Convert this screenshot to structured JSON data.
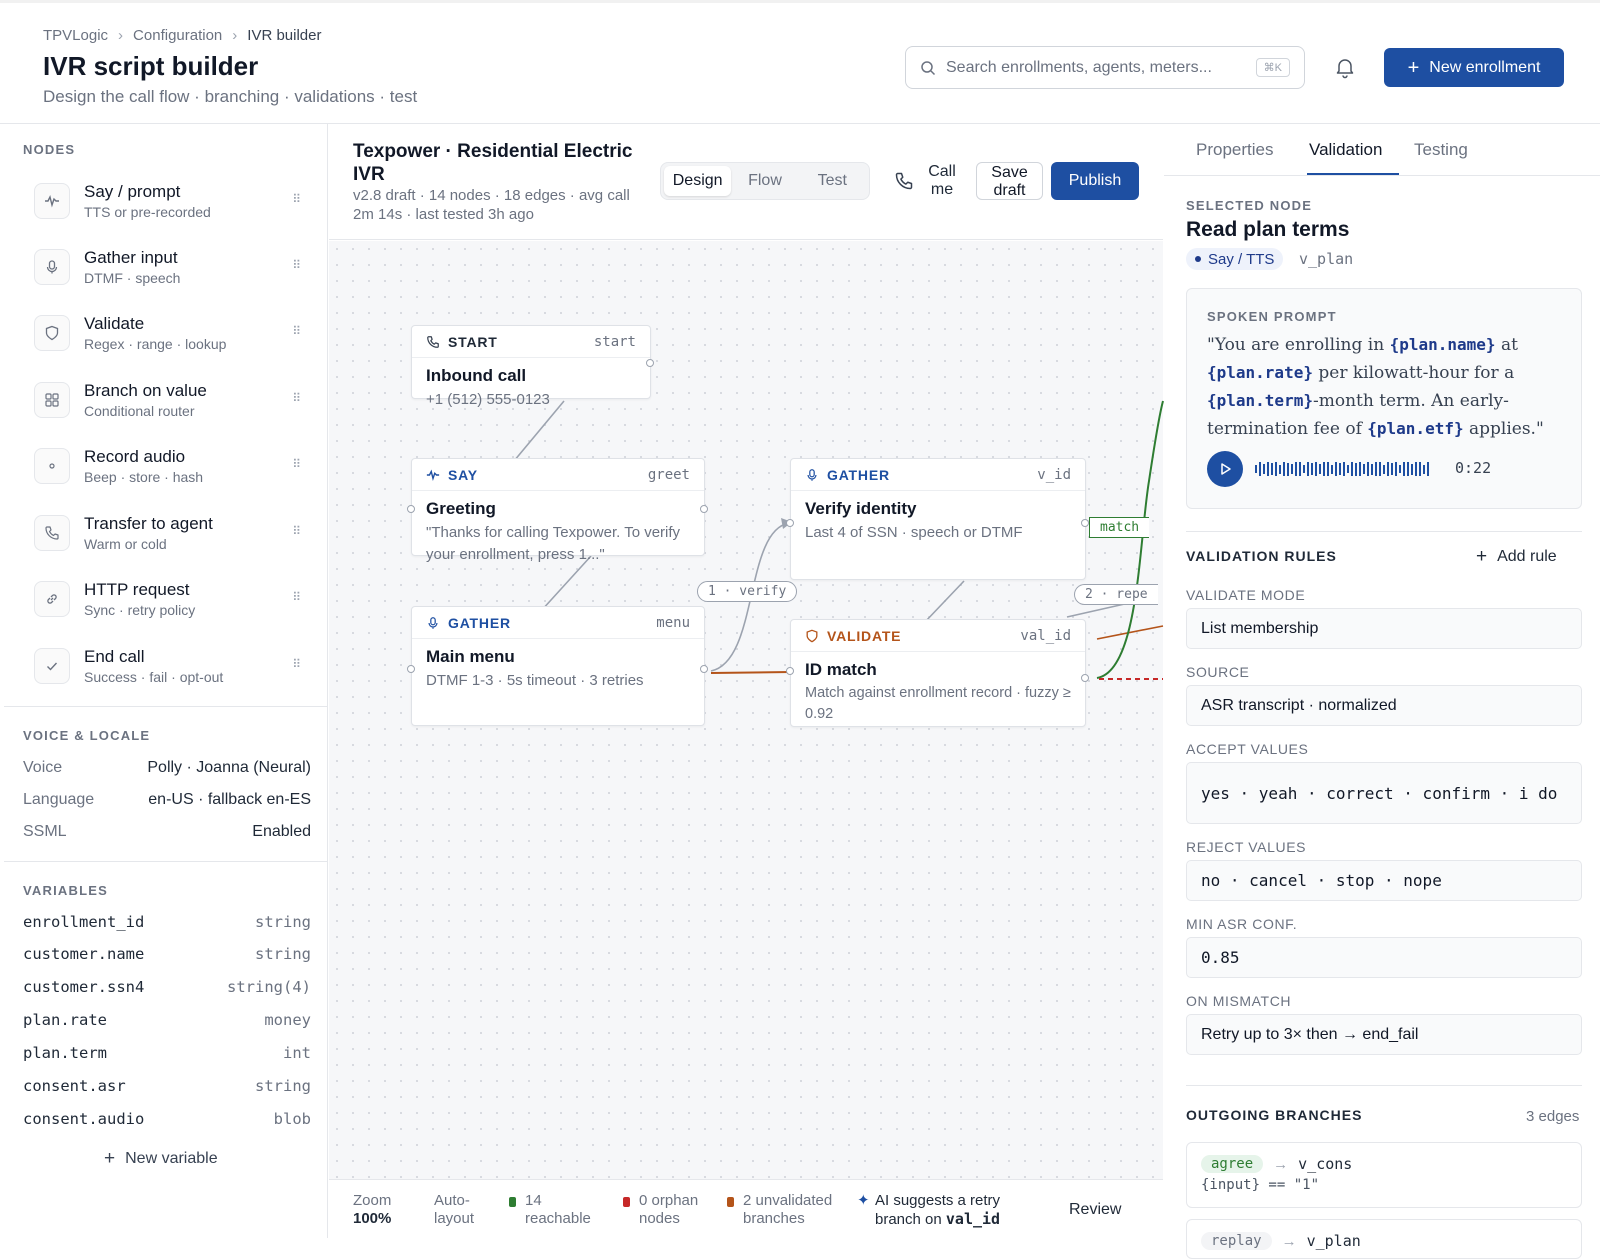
{
  "header": {
    "breadcrumbs": [
      "TPVLogic",
      "Configuration",
      "IVR builder"
    ],
    "title": "IVR script builder",
    "subtitle": "Design the call flow · branching · validations · test",
    "search_placeholder": "Search enrollments, agents, meters...",
    "search_shortcut": "⌘K",
    "new_button": "New enrollment"
  },
  "sidebar": {
    "nodes_label": "NODES",
    "nodes": [
      {
        "name": "Say / prompt",
        "desc": "TTS or pre-recorded",
        "icon": "waveform-icon"
      },
      {
        "name": "Gather input",
        "desc": "DTMF · speech",
        "icon": "microphone-icon"
      },
      {
        "name": "Validate",
        "desc": "Regex · range · lookup",
        "icon": "shield-icon"
      },
      {
        "name": "Branch on value",
        "desc": "Conditional router",
        "icon": "grid-icon"
      },
      {
        "name": "Record audio",
        "desc": "Beep · store · hash",
        "icon": "record-icon"
      },
      {
        "name": "Transfer to agent",
        "desc": "Warm or cold",
        "icon": "phone-icon"
      },
      {
        "name": "HTTP request",
        "desc": "Sync · retry policy",
        "icon": "link-icon"
      },
      {
        "name": "End call",
        "desc": "Success · fail · opt-out",
        "icon": "check-icon"
      }
    ],
    "voice_label": "VOICE & LOCALE",
    "voice": [
      {
        "k": "Voice",
        "v": "Polly · Joanna (Neural)"
      },
      {
        "k": "Language",
        "v": "en-US · fallback en-ES"
      },
      {
        "k": "SSML",
        "v": "Enabled"
      }
    ],
    "variables_label": "VARIABLES",
    "variables": [
      {
        "k": "enrollment_id",
        "v": "string"
      },
      {
        "k": "customer.name",
        "v": "string"
      },
      {
        "k": "customer.ssn4",
        "v": "string(4)"
      },
      {
        "k": "plan.rate",
        "v": "money"
      },
      {
        "k": "plan.term",
        "v": "int"
      },
      {
        "k": "consent.asr",
        "v": "string"
      },
      {
        "k": "consent.audio",
        "v": "blob"
      }
    ],
    "new_variable": "New variable"
  },
  "flow": {
    "title": "Texpower · Residential Electric IVR",
    "meta": "v2.8 draft · 14 nodes · 18 edges · avg call 2m 14s · last tested 3h ago",
    "modes": [
      "Design",
      "Flow",
      "Test"
    ],
    "active_mode": "Design",
    "call_me": "Call me",
    "save_draft": "Save draft",
    "publish": "Publish",
    "nodes": {
      "start": {
        "type": "START",
        "tag": "start",
        "title": "Inbound call",
        "desc": "+1 (512) 555-0123"
      },
      "greet": {
        "type": "SAY",
        "tag": "greet",
        "title": "Greeting",
        "desc": "\"Thanks for calling Texpower. To verify your enrollment, press 1...\""
      },
      "menu": {
        "type": "GATHER",
        "tag": "menu",
        "title": "Main menu",
        "desc": "DTMF 1-3 · 5s timeout · 3 retries"
      },
      "v_id": {
        "type": "GATHER",
        "tag": "v_id",
        "title": "Verify identity",
        "desc": "Last 4 of SSN · speech or DTMF"
      },
      "val_id": {
        "type": "VALIDATE",
        "tag": "val_id",
        "title": "ID match",
        "desc": "Match against enrollment record · fuzzy ≥ 0.92"
      }
    },
    "edge_labels": {
      "verify": "1 · verify",
      "repeat": "2 · repe",
      "match": "match"
    },
    "colors": {
      "accent": "#1e4fa2",
      "validate": "#b4541a",
      "match": "#2e7d32",
      "mismatch": "#c62828"
    }
  },
  "status": {
    "zoom_label": "Zoom",
    "zoom_value": "100%",
    "autolayout": "Auto-layout",
    "reachable": "14 reachable",
    "orphans": "0 orphan nodes",
    "unvalidated": "2 unvalidated branches",
    "ai_prefix": "AI suggests a retry branch on",
    "ai_var": "val_id",
    "review": "Review"
  },
  "panel": {
    "tabs": [
      "Properties",
      "Validation",
      "Testing"
    ],
    "active_tab": "Validation",
    "selected_label": "SELECTED NODE",
    "selected_title": "Read plan terms",
    "selected_type": "Say / TTS",
    "selected_var": "v_plan",
    "prompt_label": "SPOKEN PROMPT",
    "prompt": {
      "p1": "\"You are enrolling in ",
      "v1": "{plan.name}",
      "p2": " at ",
      "v2": "{plan.rate}",
      "p3": " per kilowatt-hour for a ",
      "v3": "{plan.term}",
      "p4": "-month term. An early-termination fee of ",
      "v4": "{plan.etf}",
      "p5": " applies.\""
    },
    "duration": "0:22",
    "rules_label": "VALIDATION RULES",
    "add_rule": "Add rule",
    "validate_mode_label": "VALIDATE MODE",
    "validate_mode": "List membership",
    "source_label": "SOURCE",
    "source": "ASR transcript · normalized",
    "accept_label": "ACCEPT VALUES",
    "accept": "yes · yeah · correct · confirm · i do",
    "reject_label": "REJECT VALUES",
    "reject": "no · cancel · stop · nope",
    "min_conf_label": "MIN ASR CONF.",
    "min_conf": "0.85",
    "mismatch_label": "ON MISMATCH",
    "mismatch": "Retry up to 3× then → end_fail",
    "outgoing_label": "OUTGOING BRANCHES",
    "outgoing_count": "3 edges",
    "branches": [
      {
        "chip": "agree",
        "target": "v_cons",
        "expr": "{input} == \"1\""
      },
      {
        "chip": "replay",
        "target": "v_plan",
        "expr": ""
      }
    ]
  }
}
